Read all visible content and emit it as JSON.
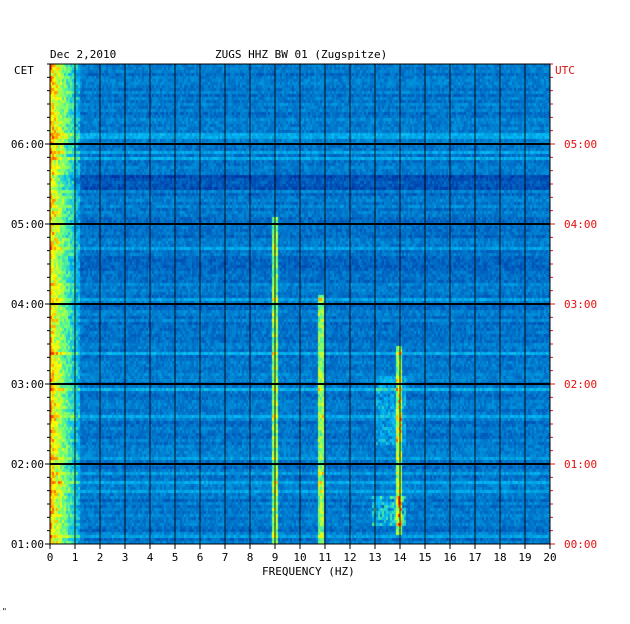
{
  "header": {
    "date": "Dec 2,2010",
    "station": "ZUGS HHZ BW 01 (Zugspitze)",
    "left_zone": "CET",
    "right_zone": "UTC"
  },
  "footer_mark": "\"",
  "colors": {
    "background": "#0a1fa8",
    "utc_label": "#e01010",
    "grid": "#000000"
  },
  "chart_data": {
    "type": "heatmap",
    "title": "ZUGS HHZ BW 01 (Zugspitze)",
    "subtitle": "Dec 2,2010",
    "xlabel": "FREQUENCY (HZ)",
    "x_ticks": [
      "0",
      "1",
      "2",
      "3",
      "4",
      "5",
      "6",
      "7",
      "8",
      "9",
      "10",
      "11",
      "12",
      "13",
      "14",
      "15",
      "16",
      "17",
      "18",
      "19",
      "20"
    ],
    "xlim": [
      0,
      20
    ],
    "cet_ticks": [
      "06:00",
      "05:00",
      "04:00",
      "03:00",
      "02:00",
      "01:00"
    ],
    "utc_ticks": [
      "05:00",
      "04:00",
      "03:00",
      "02:00",
      "01:00",
      "00:00"
    ],
    "grid": true,
    "spectral_lines_hz": [
      9.0,
      10.8,
      13.9
    ],
    "colormap": "blue-cyan-yellow-red (jet)"
  }
}
